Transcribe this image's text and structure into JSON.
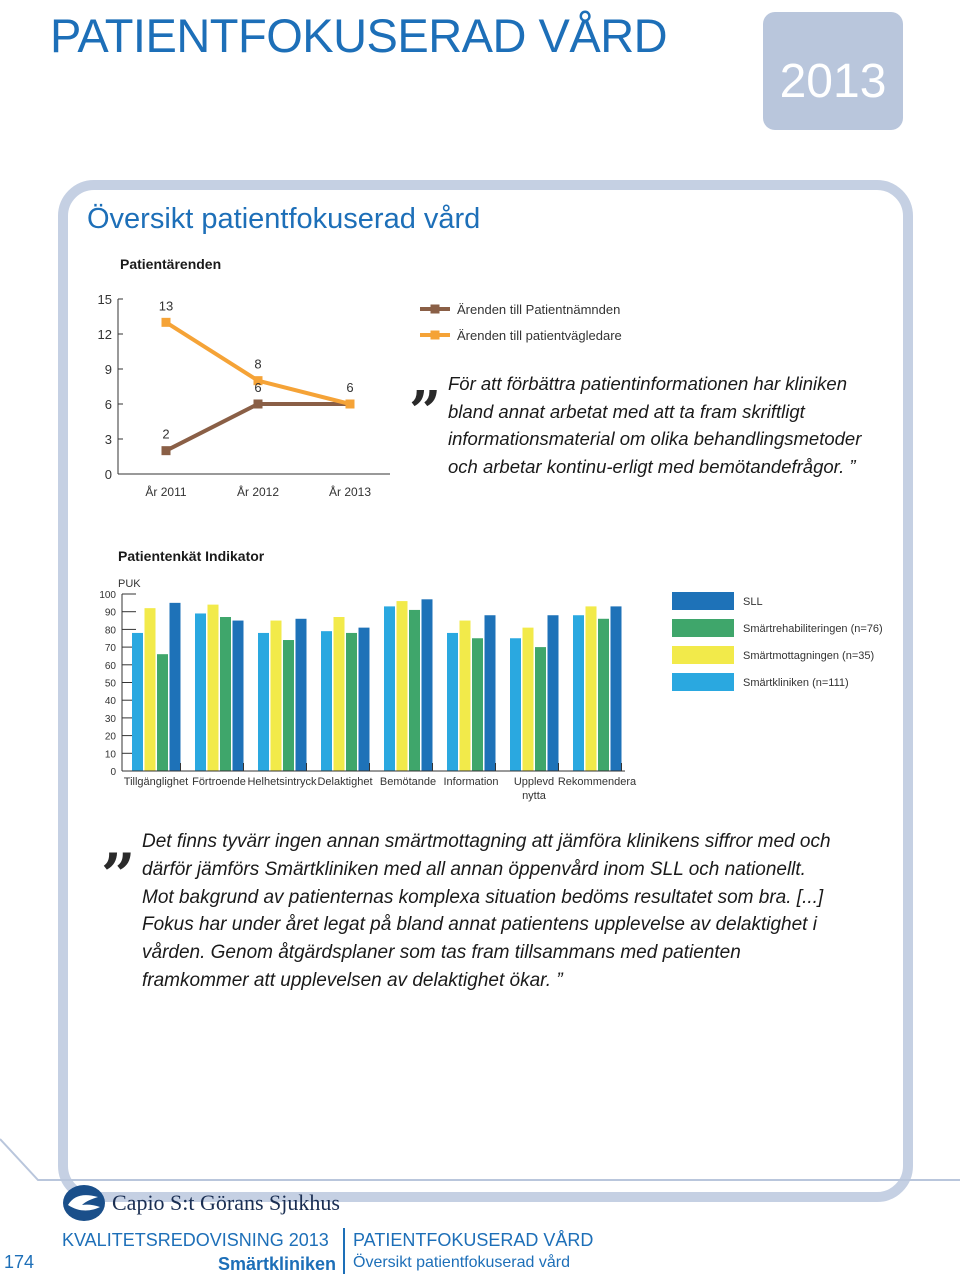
{
  "header": {
    "title": "PATIENTFOKUSERAD VÅRD",
    "year": "2013"
  },
  "section": {
    "title": "Översikt patientfokuserad vård"
  },
  "colors": {
    "brown": "#8a5f46",
    "orange": "#f5a337",
    "sll": "#1e72b8",
    "rehab": "#3fa66b",
    "smart_mott": "#f2ea4a",
    "smart_klin": "#2aa8e0",
    "accent": "#1d6fb8",
    "frame": "#c5d0e3"
  },
  "chart_data": [
    {
      "type": "line",
      "title": "Patientärenden",
      "categories": [
        "År 2011",
        "År 2012",
        "År 2013"
      ],
      "ylim": [
        0,
        15
      ],
      "yticks": [
        0,
        3,
        6,
        9,
        12,
        15
      ],
      "series": [
        {
          "name": "Ärenden till Patientnämnden",
          "color_key": "brown",
          "values": [
            2,
            6,
            6
          ]
        },
        {
          "name": "Ärenden till patientvägledare",
          "color_key": "orange",
          "values": [
            13,
            8,
            6
          ]
        }
      ],
      "labels": [
        {
          "text": "13",
          "series": 1,
          "index": 0
        },
        {
          "text": "8",
          "series": 1,
          "index": 1
        },
        {
          "text": "6",
          "series": 0,
          "index": 1
        },
        {
          "text": "6",
          "series": 1,
          "index": 2
        },
        {
          "text": "2",
          "series": 0,
          "index": 0
        }
      ]
    },
    {
      "type": "bar",
      "title": "Patientenkät Indikator",
      "ylabel": "PUK",
      "ylim": [
        0,
        100
      ],
      "yticks": [
        0,
        10,
        20,
        30,
        40,
        50,
        60,
        70,
        80,
        90,
        100
      ],
      "categories": [
        "Tillgänglighet",
        "Förtroende",
        "Helhetsintryck",
        "Delaktighet",
        "Bemötande",
        "Information",
        "Upplevd nytta",
        "Rekommendera"
      ],
      "series": [
        {
          "name": "Smärtkliniken (n=111)",
          "color_key": "smart_klin",
          "values": [
            78,
            89,
            78,
            79,
            93,
            78,
            75,
            88
          ]
        },
        {
          "name": "Smärtmottagningen (n=35)",
          "color_key": "smart_mott",
          "values": [
            92,
            94,
            85,
            87,
            96,
            85,
            81,
            93
          ]
        },
        {
          "name": "Smärtrehabiliteringen (n=76)",
          "color_key": "rehab",
          "values": [
            66,
            87,
            74,
            78,
            91,
            75,
            70,
            86
          ]
        },
        {
          "name": "SLL",
          "color_key": "sll",
          "values": [
            95,
            85,
            86,
            81,
            97,
            88,
            88,
            93
          ]
        }
      ],
      "legend": [
        "SLL",
        "Smärtrehabiliteringen (n=76)",
        "Smärtmottagningen (n=35)",
        "Smärtkliniken (n=111)"
      ]
    }
  ],
  "quote1": {
    "open": "„",
    "text": "För att förbättra patientinformationen har kliniken bland annat arbetat med att ta fram skriftligt informationsmaterial om olika behandlingsmetoder och arbetar kontinu-erligt med bemötandefrågor.",
    "close": "”"
  },
  "quote2": {
    "open": "„",
    "text": "Det finns tyvärr ingen annan smärtmottagning att jämföra klinikens siffror med och därför jämförs Smärtkliniken med all annan öppenvård inom SLL och nationellt. Mot bakgrund av patienternas komplexa situation bedöms resultatet som bra. [...] Fokus har under året legat på bland annat patientens upplevelse av delaktighet i vården. Genom åtgärdsplaner som tas fram tillsammans med patienten framkommer att upplevelsen av delaktighet ökar.",
    "close": "”"
  },
  "footer": {
    "logo_text": "Capio S:t Görans Sjukhus",
    "report": "KVALITETSREDOVISNING 2013",
    "clinic": "Smärtkliniken",
    "section": "PATIENTFOKUSERAD VÅRD",
    "subsection": "Översikt patientfokuserad vård",
    "page_number": "174"
  }
}
